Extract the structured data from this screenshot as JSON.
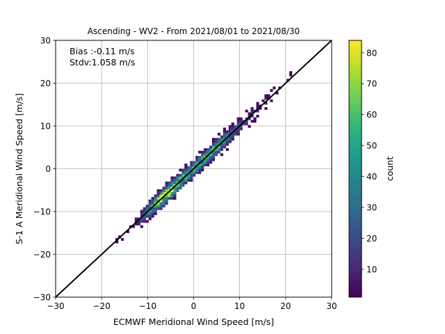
{
  "chart_data": {
    "type": "heatmap",
    "title": "Ascending - WV2 - From 2021/08/01 to 2021/08/30",
    "xlabel": "ECMWF Meridional Wind Speed [m/s]",
    "ylabel": "S-1 A Meridional Wind Speed [m/s]",
    "xlim": [
      -30,
      30
    ],
    "ylim": [
      -30,
      30
    ],
    "xticks": [
      -30,
      -20,
      -10,
      0,
      10,
      20,
      30
    ],
    "yticks": [
      -30,
      -20,
      -10,
      0,
      10,
      20,
      30
    ],
    "grid": true,
    "annotations": [
      "Bias :-0.11 m/s",
      "Stdv:1.058 m/s"
    ],
    "reference_line": {
      "x": [
        -30,
        30
      ],
      "y": [
        -30,
        30
      ],
      "color": "#000000"
    },
    "colorbar": {
      "label": "count",
      "min": 1,
      "max": 84,
      "ticks": [
        10,
        20,
        30,
        40,
        50,
        60,
        70,
        80
      ],
      "colormap": "viridis"
    },
    "density": {
      "x_range": [
        -17,
        22
      ],
      "approx_peak": [
        -6,
        -6
      ],
      "secondary_peak": [
        3,
        3
      ],
      "max_count": 84,
      "spread_std": 1.06
    }
  },
  "colors": {
    "viridis": [
      "#440154",
      "#482878",
      "#3e4989",
      "#31688e",
      "#26828e",
      "#1f9e89",
      "#35b779",
      "#6ece58",
      "#b5de2b",
      "#fde725"
    ]
  }
}
